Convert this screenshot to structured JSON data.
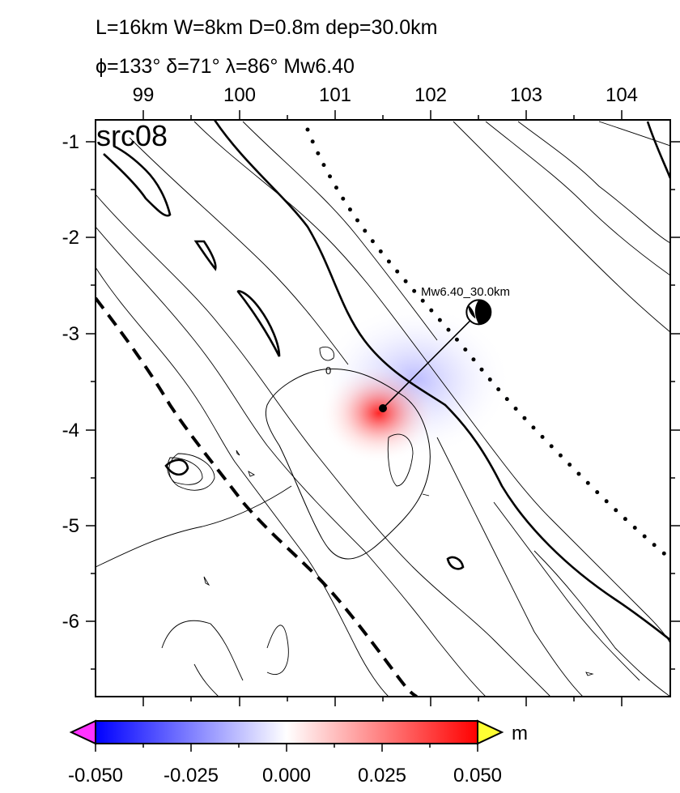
{
  "header": {
    "line1": "L=16km W=8km D=0.8m dep=30.0km",
    "line2_symbols": "ϕ=133° δ=71° λ=86° Mw6.40"
  },
  "panel_label": "src08",
  "map": {
    "x_axis_ticks": [
      "99",
      "100",
      "101",
      "102",
      "103",
      "104"
    ],
    "y_axis_ticks": [
      "-1",
      "-2",
      "-3",
      "-4",
      "-5",
      "-6"
    ],
    "lon_range": [
      98.5,
      104.5
    ],
    "lat_range": [
      -6.8,
      -0.8
    ]
  },
  "source": {
    "label": "Mw6.40_30.0km",
    "epicenter_lon": 101.5,
    "epicenter_lat": -3.8,
    "beachball_lon": 102.5,
    "beachball_lat": -2.8
  },
  "contour_label": "0",
  "colorbar": {
    "unit": "m",
    "ticks": [
      "-0.050",
      "-0.025",
      "0.000",
      "0.025",
      "0.050"
    ],
    "min": -0.05,
    "max": 0.05,
    "colors": {
      "negative": "#0000ff",
      "zero": "#ffffff",
      "positive": "#ff0000",
      "below_range": "#ff33ff",
      "above_range": "#ffff33"
    }
  }
}
